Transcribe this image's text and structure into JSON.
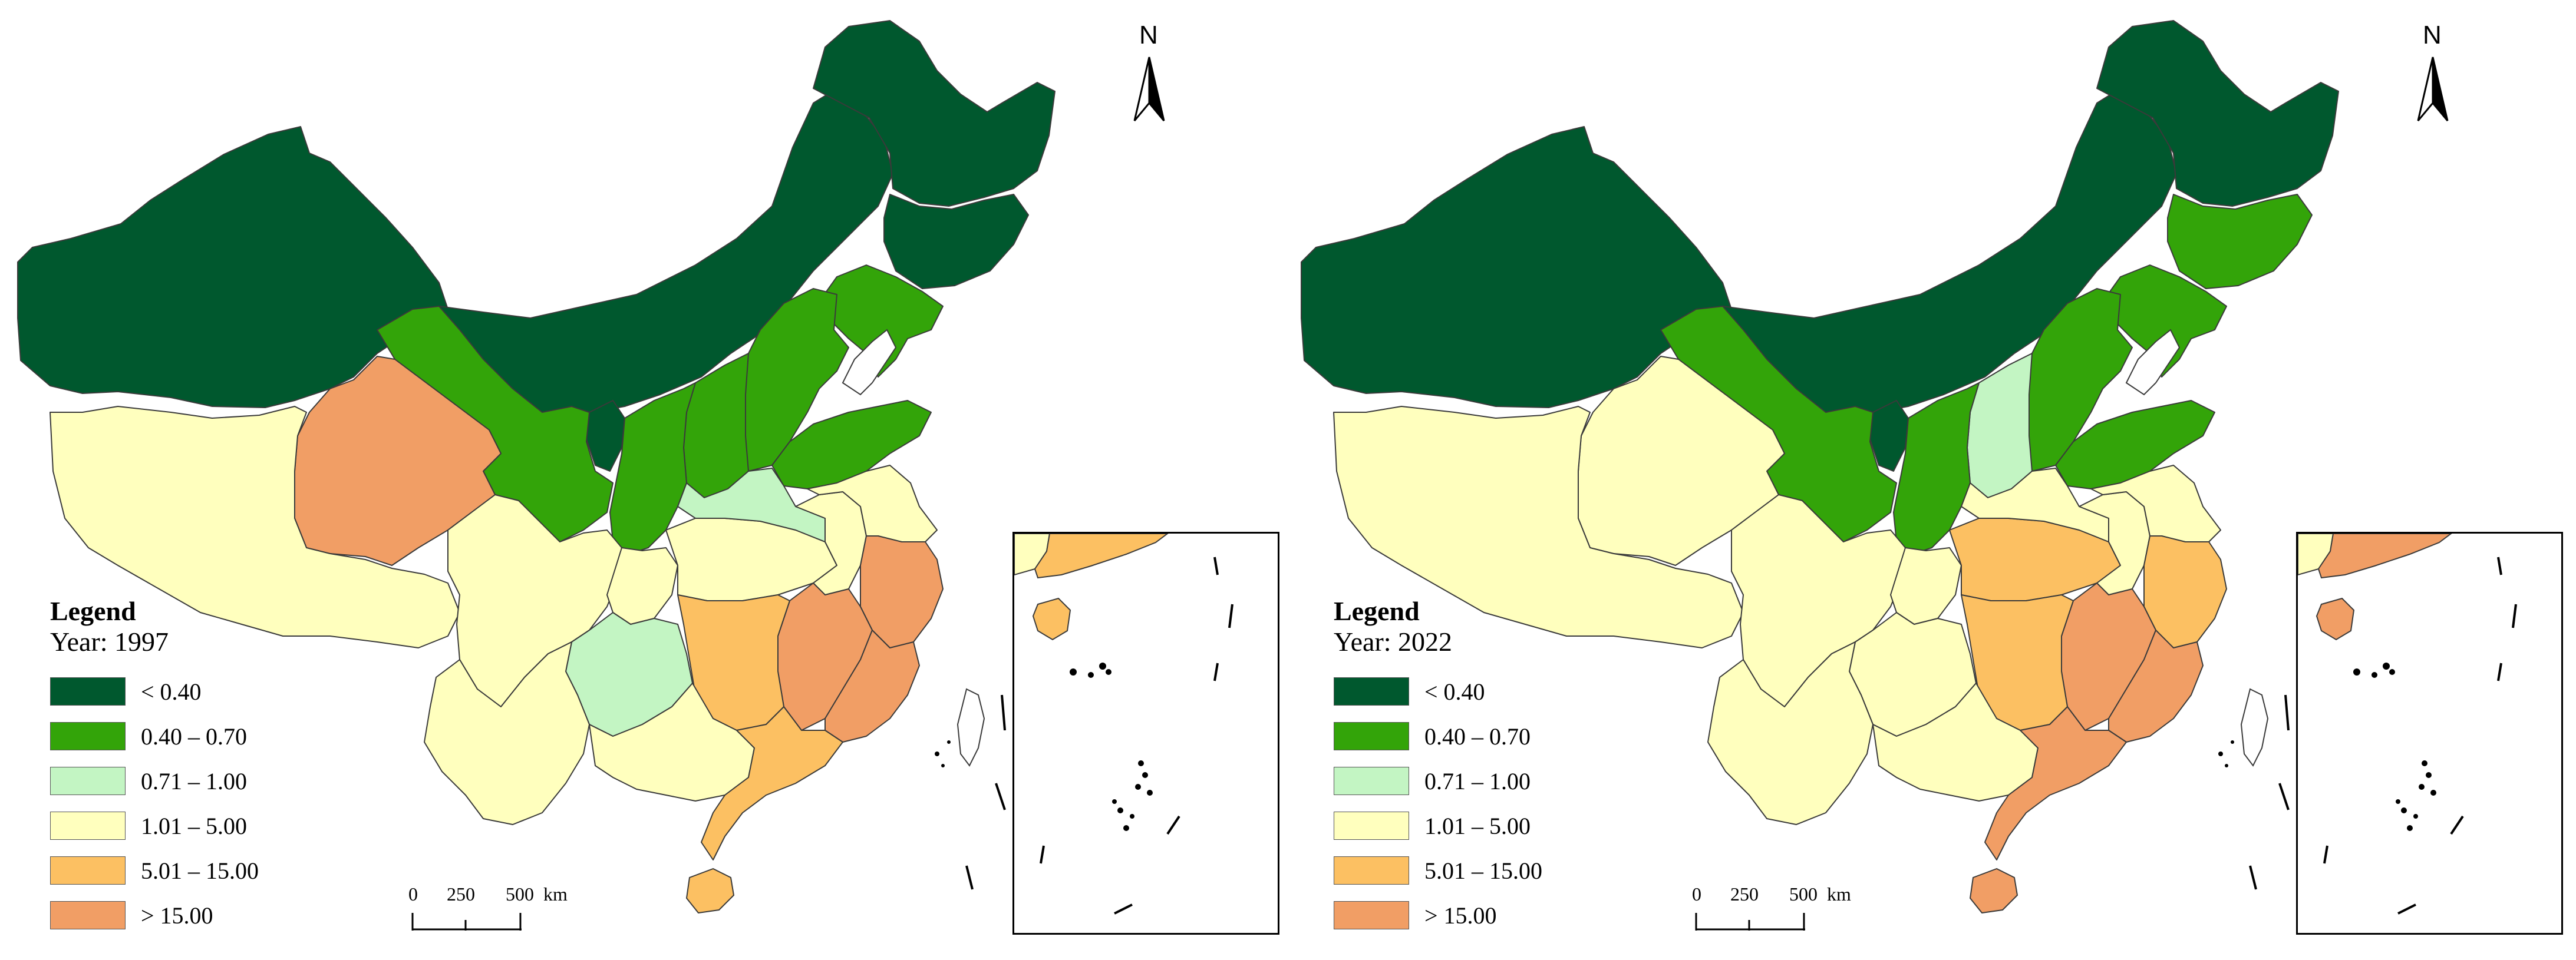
{
  "colors": {
    "lt_0_40": "#00582e",
    "c_0_40_0_70": "#33a409",
    "c_0_71_1_00": "#c3f5c3",
    "c_1_01_5_00": "#ffffbe",
    "c_5_01_15_00": "#fcc062",
    "gt_15_00": "#f19e65",
    "boundary": "#3a3a3a"
  },
  "legend": {
    "title": "Legend",
    "classes": [
      {
        "label": "< 0.40",
        "color": "#00582e"
      },
      {
        "label": "0.40 – 0.70",
        "color": "#33a409"
      },
      {
        "label": "0.71 – 1.00",
        "color": "#c3f5c3"
      },
      {
        "label": "1.01 – 5.00",
        "color": "#ffffbe"
      },
      {
        "label": "5.01 – 15.00",
        "color": "#fcc062"
      },
      {
        "label": "> 15.00",
        "color": "#f19e65"
      }
    ]
  },
  "maps": [
    {
      "year_label": "Year: 1997",
      "regions": {
        "xinjiang": "lt_0_40",
        "inner_mongolia": "lt_0_40",
        "heilongjiang": "lt_0_40",
        "jilin": "lt_0_40",
        "ningxia": "lt_0_40",
        "gansu": "c_0_40_0_70",
        "shaanxi": "c_0_40_0_70",
        "shanxi": "c_0_40_0_70",
        "hebei": "c_0_40_0_70",
        "liaoning": "c_0_40_0_70",
        "shandong": "c_0_40_0_70",
        "henan": "c_0_71_1_00",
        "guizhou": "c_0_71_1_00",
        "tibet": "c_1_01_5_00",
        "sichuan": "c_1_01_5_00",
        "yunnan": "c_1_01_5_00",
        "chongqing": "c_1_01_5_00",
        "hubei": "c_1_01_5_00",
        "anhui": "c_1_01_5_00",
        "jiangsu": "c_1_01_5_00",
        "guangxi": "c_1_01_5_00",
        "hunan": "c_5_01_15_00",
        "guangdong": "c_5_01_15_00",
        "hainan": "c_5_01_15_00",
        "qinghai": "gt_15_00",
        "jiangxi": "gt_15_00",
        "fujian": "gt_15_00",
        "zhejiang": "gt_15_00",
        "inset_mainland": "c_5_01_15_00",
        "inset_taiwan": "c_5_01_15_00",
        "inset_north": "c_1_01_5_00"
      }
    },
    {
      "year_label": "Year: 2022",
      "regions": {
        "xinjiang": "lt_0_40",
        "inner_mongolia": "lt_0_40",
        "heilongjiang": "lt_0_40",
        "ningxia": "lt_0_40",
        "gansu": "c_0_40_0_70",
        "shaanxi": "c_0_40_0_70",
        "hebei": "c_0_40_0_70",
        "liaoning": "c_0_40_0_70",
        "shandong": "c_0_40_0_70",
        "jilin": "c_0_40_0_70",
        "shanxi": "c_0_71_1_00",
        "tibet": "c_1_01_5_00",
        "qinghai": "c_1_01_5_00",
        "sichuan": "c_1_01_5_00",
        "yunnan": "c_1_01_5_00",
        "chongqing": "c_1_01_5_00",
        "guizhou": "c_1_01_5_00",
        "henan": "c_1_01_5_00",
        "anhui": "c_1_01_5_00",
        "jiangsu": "c_1_01_5_00",
        "guangxi": "c_1_01_5_00",
        "hubei": "c_5_01_15_00",
        "hunan": "c_5_01_15_00",
        "zhejiang": "c_5_01_15_00",
        "jiangxi": "gt_15_00",
        "fujian": "gt_15_00",
        "guangdong": "gt_15_00",
        "hainan": "gt_15_00",
        "inset_mainland": "gt_15_00",
        "inset_taiwan": "gt_15_00",
        "inset_north": "c_1_01_5_00"
      }
    }
  ],
  "scalebar": {
    "ticks": [
      "0",
      "250",
      "500"
    ],
    "unit": "km"
  },
  "north_arrow": {
    "letter": "N"
  }
}
